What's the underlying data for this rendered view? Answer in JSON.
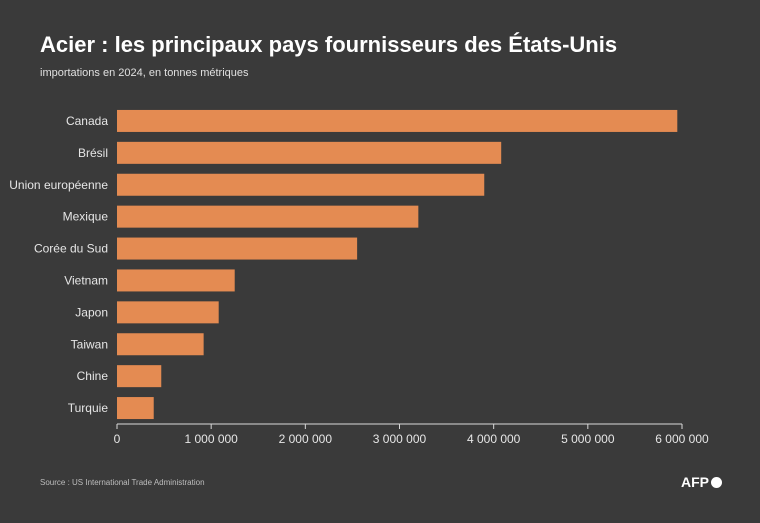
{
  "header": {
    "title": "Acier : les principaux pays fournisseurs des États-Unis",
    "subtitle": "importations en 2024, en tonnes métriques"
  },
  "footer": {
    "source": "Source : US International Trade Administration",
    "logo_text": "AFP"
  },
  "colors": {
    "background": "#3a3a3a",
    "bar": "#e48b52",
    "text": "#e6e6e6"
  },
  "chart_data": {
    "type": "bar",
    "orientation": "horizontal",
    "title": "Acier : les principaux pays fournisseurs des États-Unis",
    "subtitle": "importations en 2024, en tonnes métriques",
    "categories": [
      "Canada",
      "Brésil",
      "Union européenne",
      "Mexique",
      "Corée du Sud",
      "Vietnam",
      "Japon",
      "Taiwan",
      "Chine",
      "Turquie"
    ],
    "values": [
      5950000,
      4080000,
      3900000,
      3200000,
      2550000,
      1250000,
      1080000,
      920000,
      470000,
      390000
    ],
    "xlim": [
      0,
      6000000
    ],
    "xticks": [
      0,
      1000000,
      2000000,
      3000000,
      4000000,
      5000000,
      6000000
    ],
    "xtick_labels": [
      "0",
      "1 000 000",
      "2 000 000",
      "3 000 000",
      "4 000 000",
      "5 000 000",
      "6 000 000"
    ],
    "grid": false,
    "legend": "none"
  }
}
